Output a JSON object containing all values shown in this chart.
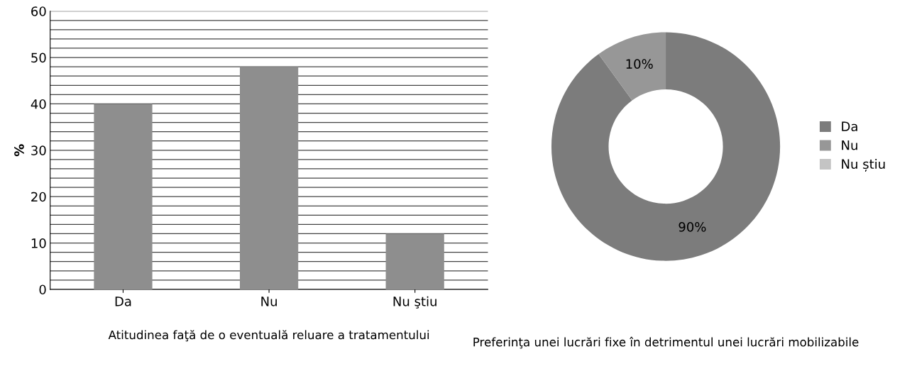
{
  "chart_data": [
    {
      "type": "bar",
      "title": "Atitudinea faţă de o eventuală reluare a tratamentului",
      "ylabel": "%",
      "categories": [
        "Da",
        "Nu",
        "Nu ştiu"
      ],
      "values": [
        40,
        48,
        12
      ],
      "color": "#8e8e8e",
      "ylim": [
        0,
        60
      ],
      "yticks": [
        0,
        {
          "value": 2,
          "label": null
        },
        {
          "value": 4,
          "label": null
        },
        {
          "value": 6,
          "label": null
        },
        {
          "value": 8,
          "label": null
        },
        10,
        {
          "value": 12,
          "label": null
        },
        {
          "value": 14,
          "label": null
        },
        {
          "value": 16,
          "label": null
        },
        {
          "value": 18,
          "label": null
        },
        20,
        {
          "value": 22,
          "label": null
        },
        {
          "value": 24,
          "label": null
        },
        {
          "value": 26,
          "label": null
        },
        {
          "value": 28,
          "label": null
        },
        30,
        {
          "value": 32,
          "label": null
        },
        {
          "value": 34,
          "label": null
        },
        {
          "value": 36,
          "label": null
        },
        {
          "value": 38,
          "label": null
        },
        40,
        {
          "value": 42,
          "label": null
        },
        {
          "value": 44,
          "label": null
        },
        {
          "value": 46,
          "label": null
        },
        {
          "value": 48,
          "label": null
        },
        50,
        {
          "value": 52,
          "label": null
        },
        {
          "value": 54,
          "label": null
        },
        {
          "value": 56,
          "label": null
        },
        {
          "value": 58,
          "label": null
        },
        60
      ],
      "grid": "y"
    },
    {
      "type": "donut",
      "title": "Preferinţa unei lucrări fixe în detrimentul unei lucrări mobilizabile",
      "categories": [
        "Da",
        "Nu",
        "Nu știu"
      ],
      "values": [
        90,
        10,
        0
      ],
      "colors": [
        "#7c7c7c",
        "#979797",
        "#c4c4c4"
      ],
      "value_labels": [
        "90%",
        "10%",
        null
      ],
      "legend": "right"
    }
  ]
}
